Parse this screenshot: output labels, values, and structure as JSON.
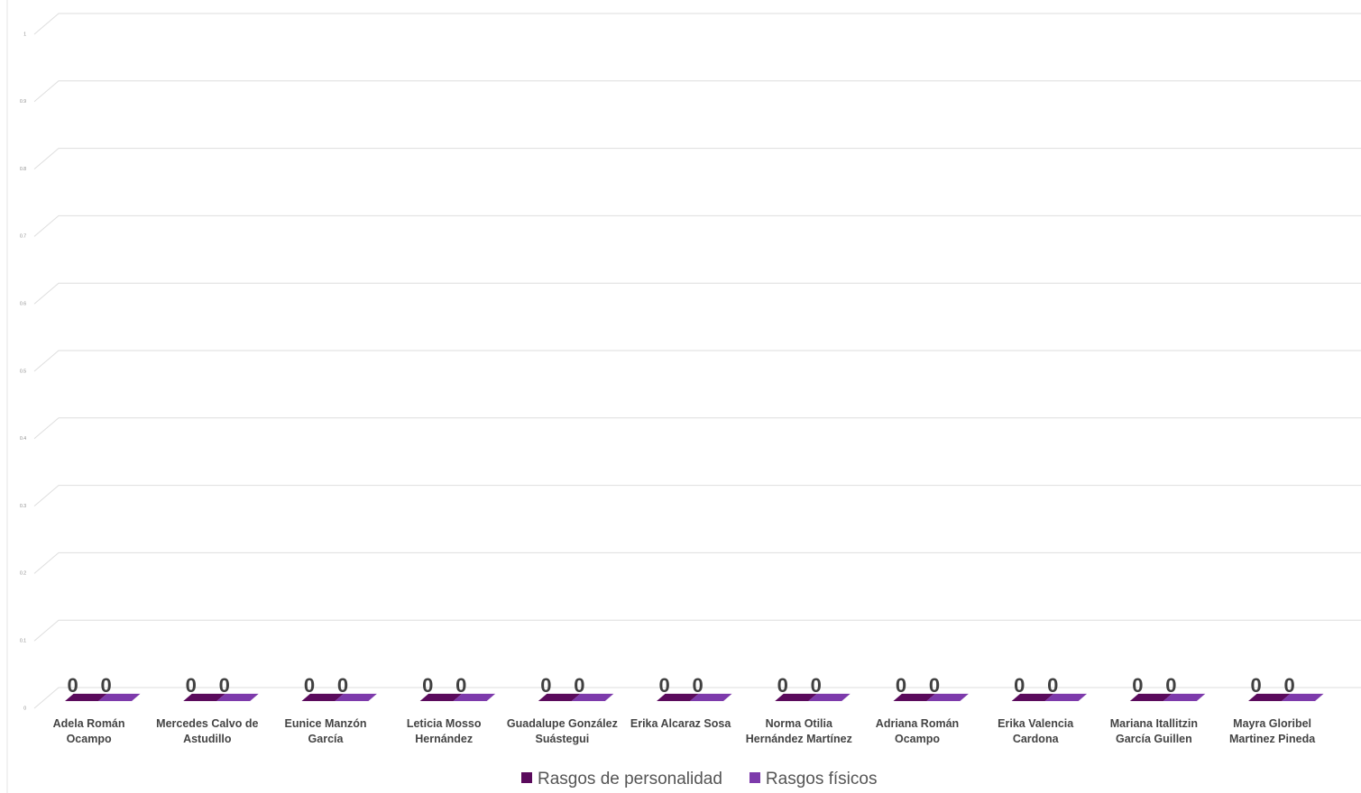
{
  "chart_data": {
    "type": "bar3d",
    "categories": [
      "Adela Román Ocampo",
      "Mercedes Calvo de Astudillo",
      "Eunice Manzón García",
      "Leticia Mosso Hernández",
      "Guadalupe González Suástegui",
      "Erika Alcaraz Sosa",
      "Norma Otilia Hernández Martínez",
      "Adriana Román Ocampo",
      "Erika Valencia Cardona",
      "Mariana Itallitzin García Guillen",
      "Mayra Gloribel Martinez Pineda"
    ],
    "series": [
      {
        "name": "Rasgos de personalidad",
        "color": "#5a0a5c",
        "values": [
          0,
          0,
          0,
          0,
          0,
          0,
          0,
          0,
          0,
          0,
          0
        ]
      },
      {
        "name": "Rasgos físicos",
        "color": "#7d3aab",
        "values": [
          0,
          0,
          0,
          0,
          0,
          0,
          0,
          0,
          0,
          0,
          0
        ]
      }
    ],
    "ylim": [
      0,
      1
    ],
    "yticks": [
      0,
      0.1,
      0.2,
      0.3,
      0.4,
      0.5,
      0.6,
      0.7,
      0.8,
      0.9,
      1
    ],
    "grid": true,
    "legend": "bottom"
  }
}
